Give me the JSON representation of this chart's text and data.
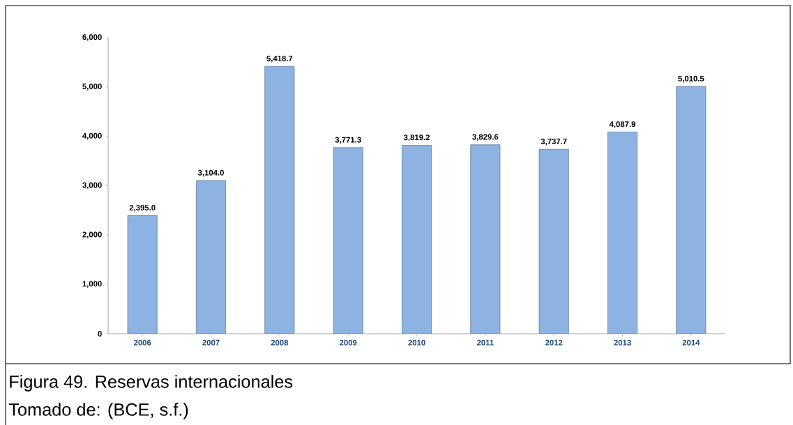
{
  "chart_data": {
    "type": "bar",
    "categories": [
      "2006",
      "2007",
      "2008",
      "2009",
      "2010",
      "2011",
      "2012",
      "2013",
      "2014"
    ],
    "values": [
      2395.0,
      3104.0,
      5418.7,
      3771.3,
      3819.2,
      3829.6,
      3737.7,
      4087.9,
      5010.5
    ],
    "value_labels": [
      "2,395.0",
      "3,104.0",
      "5,418.7",
      "3,771.3",
      "3,819.2",
      "3,829.6",
      "3,737.7",
      "4,087.9",
      "5,010.5"
    ],
    "color": "#8db3e2",
    "ylim": [
      0,
      6000
    ],
    "yticks": [
      0,
      {
        "value": 1000,
        "label": "1,000"
      },
      {
        "value": 2000,
        "label": "2,000"
      },
      {
        "value": 3000,
        "label": "3,000"
      },
      {
        "value": 4000,
        "label": "4,000"
      },
      {
        "value": 5000,
        "label": "5,000"
      },
      {
        "value": 6000,
        "label": "6,000"
      }
    ],
    "grid": false,
    "annotations": [
      "Figura 49. Reservas internacionales",
      "Tomado de: (BCE, s.f.)"
    ]
  }
}
